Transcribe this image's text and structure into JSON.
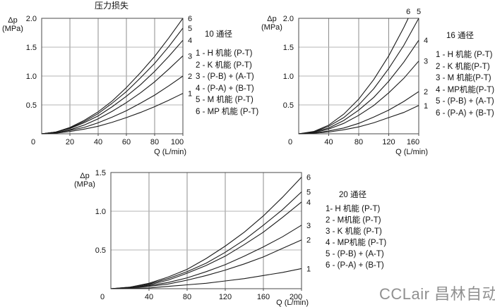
{
  "page": {
    "watermark": "CCLair 昌林自动化"
  },
  "colors": {
    "curve": "#1a1a1a",
    "grid_v": "#8c8c8c",
    "grid_h": "#b4b4b4",
    "frame": "#4a4a4a",
    "tick_text": "#111111",
    "watermark": "#909090"
  },
  "chart_data": [
    {
      "type": "line",
      "title": "压力损失",
      "name": "10 通径",
      "x_axis": {
        "label": "Q (L/min)",
        "ticks": [
          "0",
          "20",
          "40",
          "60",
          "80",
          "100"
        ],
        "max": 100
      },
      "y_axis": {
        "label": "Δp",
        "unit": "(MPa)",
        "ticks": [
          "0.5",
          "1.0",
          "1.5",
          "2.0"
        ],
        "max": 2.0
      },
      "legend": {
        "title": "10 通径",
        "items": [
          "1 - H 机能 (P-T)",
          "2 - K 机能 (P-T)",
          "3 - (P-B) + (A-T)",
          "4 - (P-A) + (B-T)",
          "5 - M 机能 (P-T)",
          "6 - MP 机能 (P-T)"
        ]
      },
      "series": [
        {
          "label": "1",
          "points": [
            [
              0,
              0
            ],
            [
              10,
              0.01
            ],
            [
              20,
              0.04
            ],
            [
              30,
              0.08
            ],
            [
              40,
              0.13
            ],
            [
              50,
              0.2
            ],
            [
              60,
              0.28
            ],
            [
              70,
              0.37
            ],
            [
              80,
              0.47
            ],
            [
              90,
              0.58
            ],
            [
              100,
              0.7
            ]
          ]
        },
        {
          "label": "2",
          "points": [
            [
              0,
              0
            ],
            [
              10,
              0.02
            ],
            [
              20,
              0.06
            ],
            [
              30,
              0.11
            ],
            [
              40,
              0.19
            ],
            [
              50,
              0.29
            ],
            [
              60,
              0.4
            ],
            [
              70,
              0.53
            ],
            [
              80,
              0.67
            ],
            [
              90,
              0.83
            ],
            [
              100,
              1.0
            ]
          ]
        },
        {
          "label": "3",
          "points": [
            [
              0,
              0
            ],
            [
              10,
              0.02
            ],
            [
              20,
              0.07
            ],
            [
              30,
              0.15
            ],
            [
              40,
              0.26
            ],
            [
              50,
              0.39
            ],
            [
              60,
              0.54
            ],
            [
              70,
              0.71
            ],
            [
              80,
              0.9
            ],
            [
              90,
              1.12
            ],
            [
              100,
              1.35
            ]
          ]
        },
        {
          "label": "4",
          "points": [
            [
              0,
              0
            ],
            [
              10,
              0.03
            ],
            [
              20,
              0.09
            ],
            [
              30,
              0.19
            ],
            [
              40,
              0.31
            ],
            [
              50,
              0.47
            ],
            [
              60,
              0.65
            ],
            [
              70,
              0.85
            ],
            [
              80,
              1.08
            ],
            [
              90,
              1.34
            ],
            [
              100,
              1.62
            ]
          ]
        },
        {
          "label": "5",
          "points": [
            [
              0,
              0
            ],
            [
              10,
              0.03
            ],
            [
              20,
              0.1
            ],
            [
              30,
              0.21
            ],
            [
              40,
              0.35
            ],
            [
              50,
              0.53
            ],
            [
              60,
              0.73
            ],
            [
              70,
              0.97
            ],
            [
              80,
              1.22
            ],
            [
              90,
              1.51
            ],
            [
              100,
              1.83
            ]
          ]
        },
        {
          "label": "6",
          "points": [
            [
              0,
              0
            ],
            [
              10,
              0.03
            ],
            [
              20,
              0.11
            ],
            [
              30,
              0.23
            ],
            [
              40,
              0.38
            ],
            [
              50,
              0.57
            ],
            [
              60,
              0.8
            ],
            [
              70,
              1.06
            ],
            [
              80,
              1.34
            ],
            [
              90,
              1.66
            ],
            [
              100,
              2.0
            ]
          ]
        }
      ]
    },
    {
      "type": "line",
      "name": "16 通径",
      "x_axis": {
        "label": "Q (L/min)",
        "ticks": [
          "0",
          "40",
          "80",
          "120",
          "160"
        ],
        "max": 160
      },
      "y_axis": {
        "label": "Δp",
        "unit": "(MPa)",
        "ticks": [
          "0.5",
          "1.0",
          "1.5",
          "2.0"
        ],
        "max": 2.0
      },
      "legend": {
        "title": "16 通径",
        "items": [
          "1 - H 机能 (P-T)",
          "2 - K 机能(P-T)",
          "3 - M 机能(P-T)",
          "4 - MP机能(P-T)",
          "5 - (P-B) + (A-T)",
          "6 - (P-A) + (B-T)"
        ]
      },
      "series": [
        {
          "label": "1",
          "points": [
            [
              0,
              0
            ],
            [
              20,
              0.01
            ],
            [
              40,
              0.03
            ],
            [
              60,
              0.07
            ],
            [
              80,
              0.12
            ],
            [
              100,
              0.19
            ],
            [
              120,
              0.28
            ],
            [
              140,
              0.37
            ],
            [
              160,
              0.49
            ]
          ]
        },
        {
          "label": "2",
          "points": [
            [
              0,
              0
            ],
            [
              20,
              0.01
            ],
            [
              40,
              0.05
            ],
            [
              60,
              0.1
            ],
            [
              80,
              0.18
            ],
            [
              100,
              0.29
            ],
            [
              120,
              0.41
            ],
            [
              140,
              0.56
            ],
            [
              160,
              0.73
            ]
          ]
        },
        {
          "label": "3",
          "points": [
            [
              0,
              0
            ],
            [
              20,
              0.02
            ],
            [
              40,
              0.08
            ],
            [
              60,
              0.18
            ],
            [
              80,
              0.32
            ],
            [
              100,
              0.49
            ],
            [
              120,
              0.71
            ],
            [
              140,
              0.96
            ],
            [
              160,
              1.26
            ]
          ]
        },
        {
          "label": "4",
          "points": [
            [
              0,
              0
            ],
            [
              20,
              0.03
            ],
            [
              40,
              0.1
            ],
            [
              60,
              0.23
            ],
            [
              80,
              0.41
            ],
            [
              100,
              0.63
            ],
            [
              120,
              0.91
            ],
            [
              140,
              1.24
            ],
            [
              160,
              1.62
            ]
          ]
        },
        {
          "label": "5",
          "label_side": "top",
          "points": [
            [
              0,
              0
            ],
            [
              20,
              0.03
            ],
            [
              40,
              0.13
            ],
            [
              60,
              0.28
            ],
            [
              80,
              0.5
            ],
            [
              100,
              0.78
            ],
            [
              120,
              1.13
            ],
            [
              140,
              1.53
            ],
            [
              160,
              2.0
            ]
          ]
        },
        {
          "label": "6",
          "label_side": "top",
          "points": [
            [
              0,
              0
            ],
            [
              20,
              0.04
            ],
            [
              40,
              0.15
            ],
            [
              60,
              0.34
            ],
            [
              80,
              0.6
            ],
            [
              100,
              0.94
            ],
            [
              120,
              1.35
            ],
            [
              140,
              1.84
            ],
            [
              146,
              2.0
            ]
          ]
        }
      ]
    },
    {
      "type": "line",
      "name": "20 通径",
      "x_axis": {
        "label": "Q (L/min)",
        "ticks": [
          "0",
          "40",
          "80",
          "120",
          "160",
          "200"
        ],
        "max": 200
      },
      "y_axis": {
        "label": "Δp",
        "unit": "(MPa)",
        "ticks": [
          "0.5",
          "1.0",
          "1.5"
        ],
        "max": 1.5
      },
      "legend": {
        "title": "20 通径",
        "items": [
          "1- H 机能 (P-T)",
          "2 - M机能 (P-T)",
          "3 - K 机能 (P-T)",
          "4 - MP机能 (P-T)",
          "5 - (P-B) + (A-T)",
          "6 - (P-A) + (B-T)"
        ]
      },
      "series": [
        {
          "label": "1",
          "points": [
            [
              0,
              0
            ],
            [
              20,
              0.005
            ],
            [
              40,
              0.01
            ],
            [
              60,
              0.03
            ],
            [
              80,
              0.05
            ],
            [
              100,
              0.07
            ],
            [
              120,
              0.1
            ],
            [
              140,
              0.13
            ],
            [
              160,
              0.17
            ],
            [
              180,
              0.21
            ],
            [
              200,
              0.26
            ]
          ]
        },
        {
          "label": "2",
          "points": [
            [
              0,
              0
            ],
            [
              20,
              0.01
            ],
            [
              40,
              0.03
            ],
            [
              60,
              0.06
            ],
            [
              80,
              0.11
            ],
            [
              100,
              0.17
            ],
            [
              120,
              0.24
            ],
            [
              140,
              0.32
            ],
            [
              160,
              0.41
            ],
            [
              180,
              0.52
            ],
            [
              200,
              0.63
            ]
          ]
        },
        {
          "label": "3",
          "points": [
            [
              0,
              0
            ],
            [
              20,
              0.01
            ],
            [
              40,
              0.04
            ],
            [
              60,
              0.08
            ],
            [
              80,
              0.14
            ],
            [
              100,
              0.22
            ],
            [
              120,
              0.31
            ],
            [
              140,
              0.42
            ],
            [
              160,
              0.54
            ],
            [
              180,
              0.67
            ],
            [
              200,
              0.82
            ]
          ]
        },
        {
          "label": "4",
          "points": [
            [
              0,
              0
            ],
            [
              20,
              0.01
            ],
            [
              40,
              0.05
            ],
            [
              60,
              0.11
            ],
            [
              80,
              0.2
            ],
            [
              100,
              0.3
            ],
            [
              120,
              0.42
            ],
            [
              140,
              0.57
            ],
            [
              160,
              0.73
            ],
            [
              180,
              0.92
            ],
            [
              200,
              1.12
            ]
          ]
        },
        {
          "label": "5",
          "points": [
            [
              0,
              0
            ],
            [
              20,
              0.02
            ],
            [
              40,
              0.06
            ],
            [
              60,
              0.13
            ],
            [
              80,
              0.22
            ],
            [
              100,
              0.33
            ],
            [
              120,
              0.47
            ],
            [
              140,
              0.63
            ],
            [
              160,
              0.82
            ],
            [
              180,
              1.02
            ],
            [
              200,
              1.25
            ]
          ]
        },
        {
          "label": "6",
          "points": [
            [
              0,
              0
            ],
            [
              20,
              0.02
            ],
            [
              40,
              0.07
            ],
            [
              60,
              0.15
            ],
            [
              80,
              0.25
            ],
            [
              100,
              0.39
            ],
            [
              120,
              0.55
            ],
            [
              140,
              0.73
            ],
            [
              160,
              0.94
            ],
            [
              180,
              1.18
            ],
            [
              200,
              1.44
            ]
          ]
        }
      ]
    }
  ]
}
